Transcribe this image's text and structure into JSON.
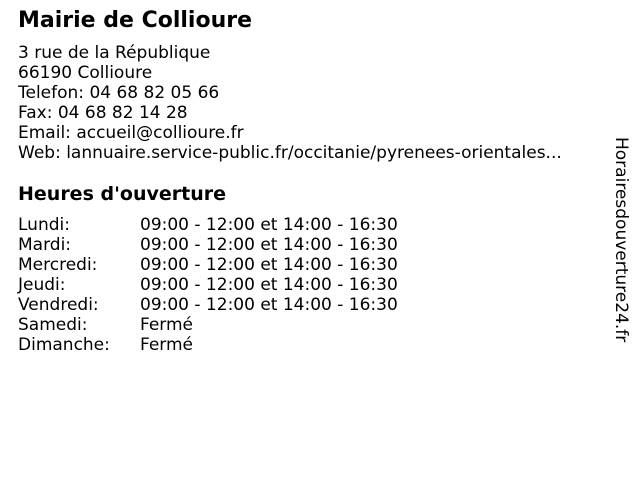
{
  "colors": {
    "background": "#ffffff",
    "text": "#000000"
  },
  "header": {
    "title": "Mairie de Collioure"
  },
  "contact": {
    "address_street": "3 rue de la République",
    "address_city": "66190 Collioure",
    "phone_label": "Telefon:",
    "phone": "04 68 82 05 66",
    "fax_label": "Fax:",
    "fax": "04 68 82 14 28",
    "email_label": "Email:",
    "email": "accueil@collioure.fr",
    "web_label": "Web:",
    "web": "lannuaire.service-public.fr/occitanie/pyrenees-orientales..."
  },
  "hours": {
    "heading": "Heures d'ouverture",
    "rows": [
      {
        "day": "Lundi:",
        "hours": "09:00 - 12:00 et 14:00 - 16:30"
      },
      {
        "day": "Mardi:",
        "hours": "09:00 - 12:00 et 14:00 - 16:30"
      },
      {
        "day": "Mercredi:",
        "hours": "09:00 - 12:00 et 14:00 - 16:30"
      },
      {
        "day": "Jeudi:",
        "hours": "09:00 - 12:00 et 14:00 - 16:30"
      },
      {
        "day": "Vendredi:",
        "hours": "09:00 - 12:00 et 14:00 - 16:30"
      },
      {
        "day": "Samedi:",
        "hours": "Fermé"
      },
      {
        "day": "Dimanche:",
        "hours": "Fermé"
      }
    ]
  },
  "branding": {
    "vertical_text": "Horairesdouverture24.fr"
  }
}
